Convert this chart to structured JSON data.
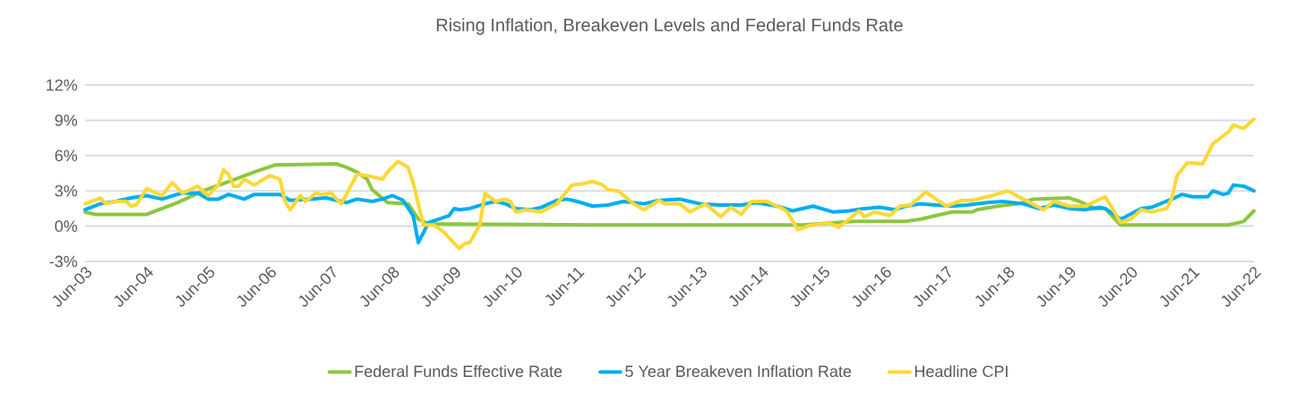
{
  "chart_data": {
    "type": "line",
    "title": "Rising Inflation, Breakeven Levels and Federal Funds Rate",
    "xlim": [
      "2003-06",
      "2022-06"
    ],
    "xticks": [
      {
        "value": "2003-06",
        "label": "Jun-03"
      },
      {
        "value": "2004-06",
        "label": "Jun-04"
      },
      {
        "value": "2005-06",
        "label": "Jun-05"
      },
      {
        "value": "2006-06",
        "label": "Jun-06"
      },
      {
        "value": "2007-06",
        "label": "Jun-07"
      },
      {
        "value": "2008-06",
        "label": "Jun-08"
      },
      {
        "value": "2009-06",
        "label": "Jun-09"
      },
      {
        "value": "2010-06",
        "label": "Jun-10"
      },
      {
        "value": "2011-06",
        "label": "Jun-11"
      },
      {
        "value": "2012-06",
        "label": "Jun-12"
      },
      {
        "value": "2013-06",
        "label": "Jun-13"
      },
      {
        "value": "2014-06",
        "label": "Jun-14"
      },
      {
        "value": "2015-06",
        "label": "Jun-15"
      },
      {
        "value": "2016-06",
        "label": "Jun-16"
      },
      {
        "value": "2017-06",
        "label": "Jun-17"
      },
      {
        "value": "2018-06",
        "label": "Jun-18"
      },
      {
        "value": "2019-06",
        "label": "Jun-19"
      },
      {
        "value": "2020-06",
        "label": "Jun-20"
      },
      {
        "value": "2021-06",
        "label": "Jun-21"
      },
      {
        "value": "2022-06",
        "label": "Jun-22"
      }
    ],
    "ylim": [
      -3,
      12
    ],
    "yticks": [
      {
        "value": -3,
        "label": "-3%"
      },
      {
        "value": 0,
        "label": "0%"
      },
      {
        "value": 3,
        "label": "3%"
      },
      {
        "value": 6,
        "label": "6%"
      },
      {
        "value": 9,
        "label": "9%"
      },
      {
        "value": 12,
        "label": "12%"
      }
    ],
    "grid": "y",
    "legend": "bottom",
    "series": [
      {
        "name": "Federal Funds Effective Rate",
        "color": "#8dc63f",
        "x": [
          "2003-06",
          "2003-08",
          "2004-06",
          "2004-12",
          "2005-05",
          "2005-12",
          "2006-03",
          "2006-07",
          "2007-07",
          "2007-09",
          "2007-11",
          "2008-01",
          "2008-02",
          "2008-05",
          "2008-09",
          "2008-11",
          "2009-01",
          "2011-10",
          "2015-02",
          "2015-12",
          "2016-10",
          "2017-01",
          "2017-04",
          "2017-07",
          "2017-11",
          "2017-12",
          "2018-04",
          "2018-08",
          "2018-11",
          "2019-06",
          "2019-08",
          "2019-11",
          "2020-01",
          "2020-04",
          "2022-01",
          "2022-04",
          "2022-06"
        ],
        "values": [
          1.2,
          1.0,
          1.0,
          2.0,
          3.0,
          4.1,
          4.6,
          5.2,
          5.3,
          5.0,
          4.6,
          4.0,
          3.1,
          2.0,
          1.9,
          0.6,
          0.2,
          0.1,
          0.1,
          0.4,
          0.4,
          0.6,
          0.9,
          1.2,
          1.2,
          1.4,
          1.7,
          1.9,
          2.3,
          2.4,
          2.1,
          1.5,
          1.5,
          0.1,
          0.1,
          0.4,
          1.3
        ]
      },
      {
        "name": "5 Year Breakeven Inflation Rate",
        "color": "#00aeef",
        "x": [
          "2003-06",
          "2003-09",
          "2003-12",
          "2004-03",
          "2004-06",
          "2004-09",
          "2004-12",
          "2005-01",
          "2005-04",
          "2005-06",
          "2005-08",
          "2005-10",
          "2006-01",
          "2006-03",
          "2006-05",
          "2006-08",
          "2006-10",
          "2007-02",
          "2007-05",
          "2007-09",
          "2007-11",
          "2008-02",
          "2008-04",
          "2008-06",
          "2008-08",
          "2008-10",
          "2008-11",
          "2009-01",
          "2009-03",
          "2009-05",
          "2009-06",
          "2009-07",
          "2009-09",
          "2009-12",
          "2010-02",
          "2010-04",
          "2010-06",
          "2010-09",
          "2010-11",
          "2011-02",
          "2011-04",
          "2011-06",
          "2011-09",
          "2011-12",
          "2012-03",
          "2012-07",
          "2012-10",
          "2013-02",
          "2013-06",
          "2013-10",
          "2014-02",
          "2014-05",
          "2014-09",
          "2014-12",
          "2015-04",
          "2015-08",
          "2015-11",
          "2016-02",
          "2016-05",
          "2016-08",
          "2016-10",
          "2017-01",
          "2017-04",
          "2017-07",
          "2017-10",
          "2018-02",
          "2018-05",
          "2018-09",
          "2018-12",
          "2019-03",
          "2019-06",
          "2019-09",
          "2019-12",
          "2020-01",
          "2020-04",
          "2020-05",
          "2020-08",
          "2020-10",
          "2021-02",
          "2021-04",
          "2021-06",
          "2021-09",
          "2021-10",
          "2021-12",
          "2022-01",
          "2022-02",
          "2022-04",
          "2022-06"
        ],
        "values": [
          1.4,
          1.9,
          2.1,
          2.4,
          2.6,
          2.3,
          2.7,
          2.8,
          2.8,
          2.3,
          2.3,
          2.7,
          2.3,
          2.7,
          2.7,
          2.7,
          2.2,
          2.3,
          2.4,
          2.0,
          2.3,
          2.1,
          2.3,
          2.6,
          2.2,
          0.9,
          -1.4,
          0.3,
          0.6,
          0.9,
          1.5,
          1.4,
          1.5,
          1.9,
          2.1,
          1.9,
          1.5,
          1.4,
          1.6,
          2.2,
          2.3,
          2.1,
          1.7,
          1.8,
          2.1,
          1.9,
          2.2,
          2.3,
          1.9,
          1.8,
          1.8,
          2.0,
          1.7,
          1.3,
          1.7,
          1.2,
          1.3,
          1.5,
          1.6,
          1.4,
          1.7,
          1.9,
          1.8,
          1.7,
          1.8,
          2.0,
          2.1,
          1.9,
          1.5,
          1.8,
          1.5,
          1.4,
          1.6,
          1.5,
          0.6,
          0.8,
          1.5,
          1.6,
          2.3,
          2.7,
          2.5,
          2.5,
          3.0,
          2.7,
          2.8,
          3.5,
          3.4,
          3.0
        ]
      },
      {
        "name": "Headline CPI",
        "color": "#fdd835",
        "x": [
          "2003-06",
          "2003-09",
          "2003-10",
          "2003-12",
          "2004-02",
          "2004-03",
          "2004-04",
          "2004-06",
          "2004-09",
          "2004-11",
          "2005-01",
          "2005-04",
          "2005-06",
          "2005-08",
          "2005-09",
          "2005-10",
          "2005-11",
          "2005-12",
          "2006-01",
          "2006-03",
          "2006-06",
          "2006-08",
          "2006-09",
          "2006-10",
          "2006-12",
          "2007-01",
          "2007-03",
          "2007-04",
          "2007-06",
          "2007-08",
          "2007-11",
          "2008-01",
          "2008-04",
          "2008-05",
          "2008-07",
          "2008-09",
          "2008-10",
          "2008-12",
          "2009-02",
          "2009-04",
          "2009-05",
          "2009-07",
          "2009-08",
          "2009-09",
          "2009-11",
          "2009-12",
          "2010-02",
          "2010-04",
          "2010-05",
          "2010-06",
          "2010-08",
          "2010-11",
          "2011-02",
          "2011-05",
          "2011-07",
          "2011-09",
          "2011-11",
          "2011-12",
          "2012-02",
          "2012-05",
          "2012-07",
          "2012-10",
          "2012-11",
          "2013-02",
          "2013-04",
          "2013-07",
          "2013-10",
          "2013-12",
          "2014-02",
          "2014-04",
          "2014-07",
          "2014-10",
          "2014-11",
          "2015-01",
          "2015-03",
          "2015-07",
          "2015-09",
          "2015-11",
          "2016-01",
          "2016-02",
          "2016-04",
          "2016-07",
          "2016-09",
          "2016-11",
          "2017-02",
          "2017-04",
          "2017-06",
          "2017-09",
          "2017-11",
          "2018-03",
          "2018-06",
          "2018-09",
          "2019-01",
          "2019-03",
          "2019-06",
          "2019-09",
          "2020-01",
          "2020-02",
          "2020-04",
          "2020-06",
          "2020-08",
          "2020-10",
          "2021-01",
          "2021-02",
          "2021-03",
          "2021-05",
          "2021-08",
          "2021-10",
          "2022-01",
          "2022-02",
          "2022-04",
          "2022-06"
        ],
        "values": [
          1.9,
          2.4,
          1.9,
          2.1,
          2.1,
          1.7,
          1.8,
          3.2,
          2.6,
          3.7,
          2.8,
          3.4,
          2.6,
          3.5,
          4.8,
          4.4,
          3.4,
          3.4,
          4.0,
          3.5,
          4.3,
          4.0,
          2.1,
          1.4,
          2.6,
          2.1,
          2.8,
          2.7,
          2.8,
          1.9,
          4.4,
          4.3,
          4.0,
          4.6,
          5.5,
          5.0,
          3.7,
          0.1,
          0.1,
          -0.5,
          -1.0,
          -1.9,
          -1.5,
          -1.4,
          0.1,
          2.8,
          2.1,
          2.3,
          2.1,
          1.2,
          1.4,
          1.2,
          1.9,
          3.5,
          3.6,
          3.8,
          3.5,
          3.1,
          3.0,
          1.9,
          1.4,
          2.2,
          1.9,
          1.9,
          1.2,
          1.9,
          0.8,
          1.6,
          1.0,
          2.1,
          2.1,
          1.5,
          1.2,
          -0.3,
          0.0,
          0.3,
          -0.1,
          0.6,
          1.3,
          0.8,
          1.2,
          0.9,
          1.7,
          1.8,
          2.9,
          2.3,
          1.7,
          2.2,
          2.2,
          2.6,
          3.0,
          2.3,
          1.4,
          2.1,
          1.7,
          1.7,
          2.5,
          1.8,
          0.3,
          0.6,
          1.4,
          1.2,
          1.5,
          2.4,
          4.3,
          5.4,
          5.3,
          7.0,
          8.0,
          8.6,
          8.3,
          9.1
        ]
      }
    ]
  }
}
